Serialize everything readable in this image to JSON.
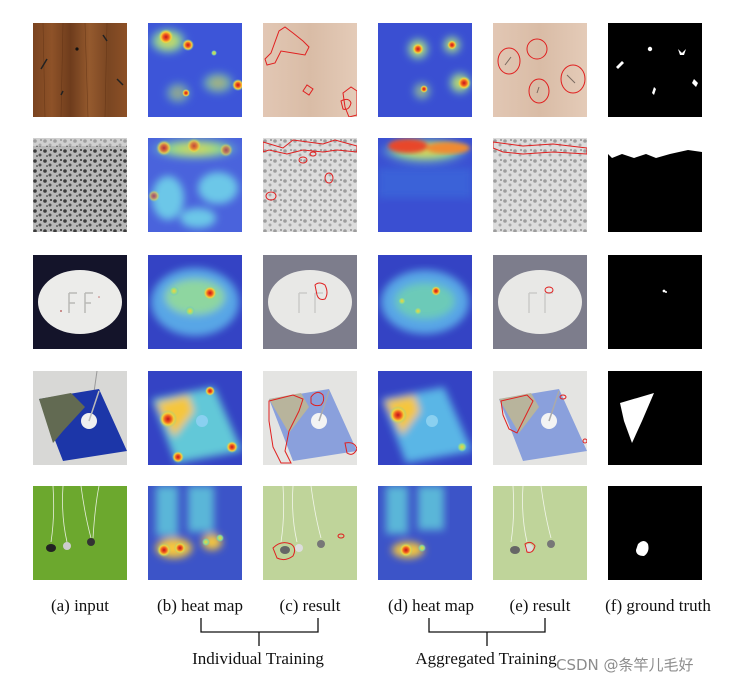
{
  "column_labels": [
    "(a) input",
    "(b) heat map",
    "(c) result",
    "(d) heat map",
    "(e) result",
    "(f) ground truth"
  ],
  "group_labels": [
    "Individual Training",
    "Aggregated Training"
  ],
  "watermark": "CSDN @条竿儿毛好",
  "rows": [
    "wood",
    "stone",
    "pill",
    "metal-plate",
    "earphones"
  ]
}
